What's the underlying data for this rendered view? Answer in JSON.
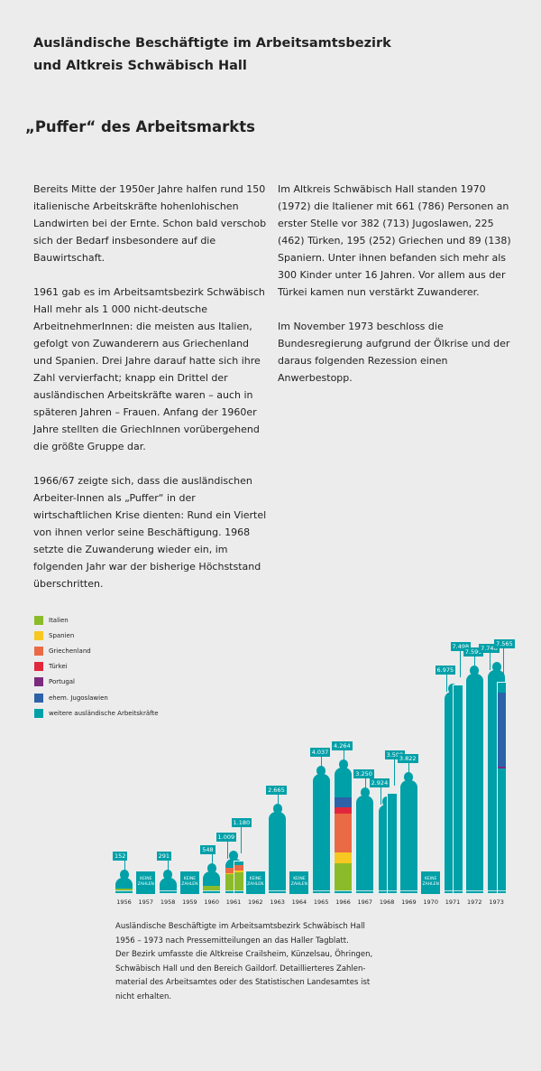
{
  "title_lines": [
    "Ausländische Beschäftigte im Arbeitsamtsbezirk",
    "und Altkreis Schwäbisch Hall"
  ],
  "subtitle": "„Puffer“ des Arbeitsmarkts",
  "left_paragraphs": [
    "Bereits Mitte der 1950er Jahre halfen rund 150 italienische Arbeitskräfte hohenlohischen Landwirten bei der Ernte. Schon bald verschob sich der Bedarf insbesondere auf die Bauwirtschaft.",
    "1961 gab es im Arbeitsamtsbezirk Schwäbisch Hall mehr als 1 000 nicht-deutsche ArbeitnehmerInnen: die meisten aus Italien, gefolgt von Zuwanderern aus Griechenland und Spanien. Drei Jahre darauf hatte sich ihre Zahl vervierfacht; knapp ein Drittel der ausländischen Arbeitskräfte waren – auch in späteren Jahren – Frauen. Anfang der 1960er Jahre stellten die GriechInnen vorübergehend die größte Gruppe dar.",
    "1966/67 zeigte sich, dass die ausländischen Arbeiter-Innen als „Puffer“ in der wirtschaftlichen Krise dienten: Rund ein Viertel von ihnen verlor seine Beschäftigung. 1968 setzte die Zuwanderung wieder ein, im folgenden Jahr war der bisherige Höchststand überschritten."
  ],
  "right_paragraphs": [
    "Im Altkreis Schwäbisch Hall standen 1970 (1972) die Italiener mit 661 (786) Personen an erster Stelle vor 382 (713) Jugoslawen, 225 (462) Türken, 195 (252) Griechen und  89 (138) Spaniern. Unter ihnen befanden sich mehr als 300 Kinder unter 16 Jahren. Vor allem aus der Türkei kamen nun verstärkt Zuwanderer.",
    "Im November 1973 beschloss die Bundesregierung aufgrund der Ölkrise und der daraus folgenden Rezession einen Anwerbestopp."
  ],
  "caption_lines": [
    "Ausländische Beschäftigte im Arbeitsamtsbezirk Schwäbisch Hall",
    "1956 – 1973 nach Pressemitteilungen an das Haller Tagblatt.",
    "Der Bezirk umfasste die Altkreise Crailsheim, Künzelsau, Öhringen,",
    "Schwäbisch Hall und den Bereich Gaildorf. Detaillierteres Zahlen-",
    "material des Arbeitsamtes oder des Statistischen Landesamtes ist",
    "nicht erhalten."
  ],
  "chart_data": {
    "type": "bar",
    "legend": [
      {
        "name": "Italien",
        "color": "#8cbb2a"
      },
      {
        "name": "Spanien",
        "color": "#f7c821"
      },
      {
        "name": "Griechenland",
        "color": "#ea6a45"
      },
      {
        "name": "Türkei",
        "color": "#e2273d"
      },
      {
        "name": "Portugal",
        "color": "#7b2a7e"
      },
      {
        "name": "ehem. Jugoslawien",
        "color": "#2d62a8"
      },
      {
        "name": "weitere ausländische Arbeitskräfte",
        "color": "#00a0a8"
      }
    ],
    "no_data_label": [
      "KEINE",
      "ZAHLEN"
    ],
    "years": [
      {
        "year": "1956",
        "bars": [
          {
            "value": 152,
            "label": "152",
            "segments": {
              "Italien": 110
            }
          }
        ]
      },
      {
        "year": "1957",
        "bars": []
      },
      {
        "year": "1958",
        "bars": [
          {
            "value": 291,
            "label": "291"
          }
        ]
      },
      {
        "year": "1959",
        "bars": []
      },
      {
        "year": "1960",
        "bars": [
          {
            "value": 548,
            "label": "548",
            "segments": {
              "Italien": 190
            }
          }
        ]
      },
      {
        "year": "1961",
        "bars": [
          {
            "value": 1009,
            "label": "1.009",
            "segments": {
              "Italien": 600,
              "Spanien": 60,
              "Griechenland": 180
            }
          },
          {
            "value": 1180,
            "label": "1.180",
            "segments": {
              "Italien": 680,
              "Spanien": 70,
              "Griechenland": 200
            }
          }
        ]
      },
      {
        "year": "1962",
        "bars": []
      },
      {
        "year": "1963",
        "bars": [
          {
            "value": 2665,
            "label": "2.665"
          }
        ]
      },
      {
        "year": "1964",
        "bars": []
      },
      {
        "year": "1965",
        "bars": [
          {
            "value": 4037,
            "label": "4.037"
          }
        ]
      },
      {
        "year": "1966",
        "bars": [
          {
            "value": 4264,
            "label": "4.264",
            "segments": {
              "Italien": 1000,
              "Spanien": 380,
              "Griechenland": 1380,
              "Türkei": 230,
              "ehem. Jugoslawien": 380
            }
          }
        ]
      },
      {
        "year": "1967",
        "bars": [
          {
            "value": 3250,
            "label": "3.250"
          }
        ]
      },
      {
        "year": "1968",
        "bars": [
          {
            "value": 2924,
            "label": "2.924"
          },
          {
            "value": 3599,
            "label": "3.599"
          }
        ]
      },
      {
        "year": "1969",
        "bars": [
          {
            "value": 3822,
            "label": "3.822"
          }
        ]
      },
      {
        "year": "1970",
        "bars": []
      },
      {
        "year": "1971",
        "bars": [
          {
            "value": 6975,
            "label": "6.975"
          },
          {
            "value": 7498,
            "label": "7.498"
          }
        ]
      },
      {
        "year": "1972",
        "bars": [
          {
            "value": 7599,
            "label": "7.599"
          }
        ]
      },
      {
        "year": "1973",
        "bars": [
          {
            "value": 7746,
            "label": "7.746"
          },
          {
            "value": 7565,
            "label": "7.565",
            "segments": {
              "weitere ausländische Arbeitskräfte": 4380,
              "Portugal": 80,
              "ehem. Jugoslawien": 2650
            }
          }
        ]
      }
    ]
  }
}
